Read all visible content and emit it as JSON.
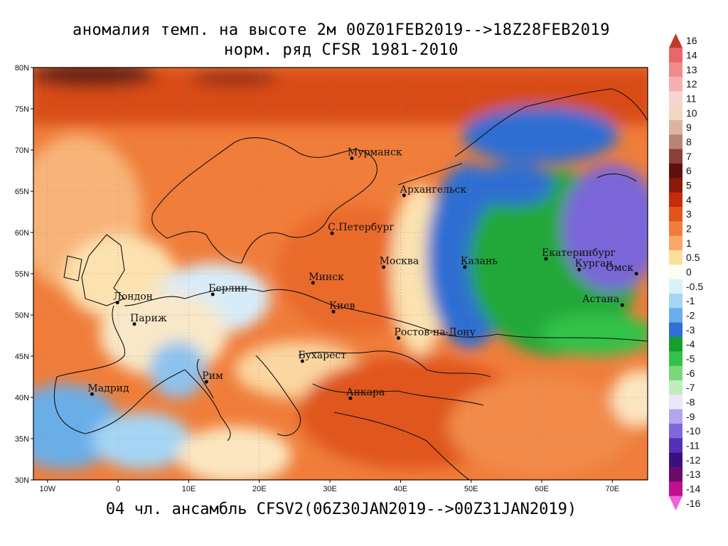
{
  "title": {
    "line1": "аномалия темп. на высоте 2м 00Z01FEB2019-->18Z28FEB2019",
    "line2": "норм. ряд CFSR 1981-2010"
  },
  "footer": "04 чл. ансамбль CFSV2(06Z30JAN2019-->00Z31JAN2019)",
  "axes": {
    "lon_ticks": [
      "10W",
      "0",
      "10E",
      "20E",
      "30E",
      "40E",
      "50E",
      "60E",
      "70E"
    ],
    "lat_ticks": [
      "80N",
      "75N",
      "70N",
      "65N",
      "60N",
      "55N",
      "50N",
      "45N",
      "40N",
      "35N",
      "30N"
    ],
    "lon_range": [
      -12,
      75
    ],
    "lat_range": [
      30,
      80
    ]
  },
  "cities": [
    {
      "name": "Мурманск",
      "lon": 33.1,
      "lat": 69.0
    },
    {
      "name": "Архангельск",
      "lon": 40.5,
      "lat": 64.5
    },
    {
      "name": "С.Петербург",
      "lon": 30.3,
      "lat": 59.9
    },
    {
      "name": "Москва",
      "lon": 37.6,
      "lat": 55.8
    },
    {
      "name": "Казань",
      "lon": 49.1,
      "lat": 55.8
    },
    {
      "name": "Екатеринбург",
      "lon": 60.6,
      "lat": 56.8
    },
    {
      "name": "Курган",
      "lon": 65.3,
      "lat": 55.5
    },
    {
      "name": "Омск",
      "lon": 73.4,
      "lat": 55.0
    },
    {
      "name": "Астана",
      "lon": 71.4,
      "lat": 51.2
    },
    {
      "name": "Минск",
      "lon": 27.6,
      "lat": 53.9
    },
    {
      "name": "Киев",
      "lon": 30.5,
      "lat": 50.4
    },
    {
      "name": "Берлин",
      "lon": 13.4,
      "lat": 52.5
    },
    {
      "name": "Лондон",
      "lon": -0.1,
      "lat": 51.5
    },
    {
      "name": "Париж",
      "lon": 2.3,
      "lat": 48.9
    },
    {
      "name": "Ростов-на-Дону",
      "lon": 39.7,
      "lat": 47.2
    },
    {
      "name": "Бухарест",
      "lon": 26.1,
      "lat": 44.4
    },
    {
      "name": "Рим",
      "lon": 12.5,
      "lat": 41.9
    },
    {
      "name": "Мадрид",
      "lon": -3.7,
      "lat": 40.4
    },
    {
      "name": "Анкара",
      "lon": 32.9,
      "lat": 39.9
    }
  ],
  "colorbar": {
    "labels": [
      "16",
      "14",
      "13",
      "12",
      "11",
      "10",
      "9",
      "8",
      "7",
      "6",
      "5",
      "4",
      "3",
      "2",
      "1",
      "0.5",
      "0",
      "-0.5",
      "-1",
      "-2",
      "-3",
      "-4",
      "-5",
      "-6",
      "-7",
      "-8",
      "-9",
      "-10",
      "-11",
      "-12",
      "-13",
      "-14",
      "-16"
    ],
    "colors": [
      "#c0392b",
      "#e8676a",
      "#f08c8c",
      "#f5b0b0",
      "#f8d5d2",
      "#f2d8c2",
      "#dcb3a3",
      "#b88474",
      "#8a3f38",
      "#5e1010",
      "#8b1a08",
      "#c62a0a",
      "#e2541c",
      "#f07d3a",
      "#f8a868",
      "#fce09a",
      "#fffdf0",
      "#d8f2fb",
      "#a5d5f4",
      "#6aaee8",
      "#2f6ed2",
      "#14a02a",
      "#32c24a",
      "#7ad87a",
      "#c0ecbe",
      "#ece6fa",
      "#b2a6ee",
      "#8068da",
      "#5530b8",
      "#3a1080",
      "#6b0a6b",
      "#c0108e",
      "#f060d8"
    ]
  }
}
